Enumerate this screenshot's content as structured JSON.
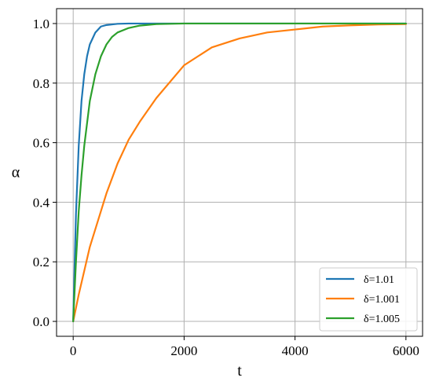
{
  "chart_data": {
    "type": "line",
    "title": "",
    "xlabel": "t",
    "ylabel": "α",
    "xlim": [
      -300,
      6300
    ],
    "ylim": [
      -0.05,
      1.05
    ],
    "xticks": [
      0,
      2000,
      4000,
      6000
    ],
    "xtick_labels": [
      "0",
      "2000",
      "4000",
      "6000"
    ],
    "yticks": [
      0.0,
      0.2,
      0.4,
      0.6,
      0.8,
      1.0
    ],
    "ytick_labels": [
      "0.0",
      "0.2",
      "0.4",
      "0.6",
      "0.8",
      "1.0"
    ],
    "grid": true,
    "legend_position": "bottom-right",
    "series": [
      {
        "name": "δ=1.01",
        "color": "#1f77b4",
        "x": [
          0,
          50,
          100,
          150,
          200,
          250,
          300,
          400,
          500,
          600,
          800,
          1000,
          1500,
          2000,
          3000,
          4000,
          5000,
          6000
        ],
        "y": [
          0,
          0.36,
          0.59,
          0.74,
          0.83,
          0.89,
          0.93,
          0.97,
          0.99,
          0.995,
          0.999,
          1.0,
          1.0,
          1.0,
          1.0,
          1.0,
          1.0,
          1.0
        ]
      },
      {
        "name": "δ=1.001",
        "color": "#ff7f0e",
        "x": [
          0,
          100,
          200,
          300,
          400,
          500,
          600,
          800,
          1000,
          1200,
          1500,
          2000,
          2500,
          3000,
          3500,
          4000,
          4500,
          5000,
          5500,
          6000
        ],
        "y": [
          0,
          0.09,
          0.17,
          0.25,
          0.31,
          0.37,
          0.43,
          0.53,
          0.61,
          0.67,
          0.75,
          0.86,
          0.92,
          0.95,
          0.97,
          0.98,
          0.99,
          0.994,
          0.997,
          0.998
        ]
      },
      {
        "name": "δ=1.005",
        "color": "#2ca02c",
        "x": [
          0,
          50,
          100,
          150,
          200,
          300,
          400,
          500,
          600,
          700,
          800,
          1000,
          1200,
          1500,
          2000,
          3000,
          4000,
          5000,
          6000
        ],
        "y": [
          0,
          0.2,
          0.37,
          0.49,
          0.59,
          0.74,
          0.83,
          0.89,
          0.93,
          0.955,
          0.97,
          0.985,
          0.993,
          0.998,
          1.0,
          1.0,
          1.0,
          1.0,
          1.0
        ]
      }
    ]
  }
}
